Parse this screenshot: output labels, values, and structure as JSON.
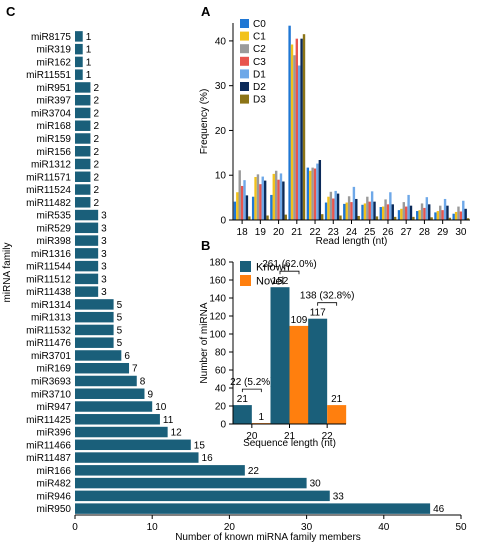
{
  "panels": {
    "c": "C",
    "a": "A",
    "b": "B"
  },
  "chart_data": [
    {
      "panel": "C",
      "type": "bar",
      "orientation": "horizontal",
      "categories": [
        "miR8175",
        "miR319",
        "miR162",
        "miR11551",
        "miR951",
        "miR397",
        "miR3704",
        "miR168",
        "miR159",
        "miR156",
        "miR1312",
        "miR11571",
        "miR11524",
        "miR11482",
        "miR535",
        "miR529",
        "miR398",
        "miR1316",
        "miR11544",
        "miR11512",
        "miR11438",
        "miR1314",
        "miR1313",
        "miR11532",
        "miR11476",
        "miR3701",
        "miR169",
        "miR3693",
        "miR3710",
        "miR947",
        "miR11425",
        "miR396",
        "miR11466",
        "miR11487",
        "miR166",
        "miR482",
        "miR946",
        "miR950"
      ],
      "values": [
        1,
        1,
        1,
        1,
        2,
        2,
        2,
        2,
        2,
        2,
        2,
        2,
        2,
        2,
        3,
        3,
        3,
        3,
        3,
        3,
        3,
        5,
        5,
        5,
        5,
        6,
        7,
        8,
        9,
        10,
        11,
        12,
        15,
        16,
        22,
        30,
        33,
        46
      ],
      "xlabel": "Number of known miRNA family members",
      "ylabel": "miRNA family",
      "xlim": [
        0,
        50
      ],
      "xticks": [
        0,
        10,
        20,
        30,
        40,
        50
      ],
      "color": "#1a5f7a",
      "grid": false
    },
    {
      "panel": "A",
      "type": "bar",
      "categories": [
        "18",
        "19",
        "20",
        "21",
        "22",
        "23",
        "24",
        "25",
        "26",
        "27",
        "28",
        "29",
        "30"
      ],
      "series": [
        {
          "name": "C0",
          "color": "#1f77d4",
          "values": [
            4.1,
            5.2,
            5.6,
            43.4,
            11.7,
            3.9,
            3.6,
            3.4,
            2.9,
            2.2,
            2.0,
            1.7,
            1.4
          ]
        },
        {
          "name": "C1",
          "color": "#f2c21b",
          "values": [
            6.2,
            9.6,
            10.3,
            39.2,
            11.0,
            5.2,
            3.9,
            3.7,
            3.0,
            2.5,
            2.2,
            2.0,
            1.8
          ]
        },
        {
          "name": "C2",
          "color": "#9a9a9a",
          "values": [
            11.1,
            10.2,
            11.0,
            36.8,
            11.7,
            6.3,
            5.3,
            5.2,
            4.6,
            4.0,
            3.7,
            3.2,
            3.0
          ]
        },
        {
          "name": "C3",
          "color": "#e8554e",
          "values": [
            7.6,
            8.0,
            9.0,
            40.5,
            11.5,
            4.8,
            4.0,
            4.1,
            3.5,
            3.0,
            2.7,
            2.2,
            1.9
          ]
        },
        {
          "name": "D1",
          "color": "#6ea8e8",
          "values": [
            8.9,
            9.7,
            10.4,
            34.5,
            12.6,
            6.5,
            7.4,
            6.4,
            6.2,
            5.6,
            5.1,
            4.7,
            4.3
          ]
        },
        {
          "name": "D2",
          "color": "#0b2a59",
          "values": [
            5.5,
            8.8,
            8.6,
            40.5,
            13.4,
            5.9,
            4.7,
            4.1,
            3.5,
            3.2,
            3.5,
            3.2,
            2.5
          ]
        },
        {
          "name": "D3",
          "color": "#8c7416",
          "values": [
            0.8,
            1.0,
            1.2,
            41.5,
            1.3,
            1.0,
            0.9,
            0.8,
            0.7,
            0.7,
            0.6,
            0.5,
            0.4
          ]
        }
      ],
      "xlabel": "Read length (nt)",
      "ylabel": "Frequency (%)",
      "ylim": [
        0,
        44
      ],
      "yticks": [
        0,
        10,
        20,
        30,
        40
      ],
      "legend": "top-left"
    },
    {
      "panel": "B",
      "type": "bar",
      "categories": [
        "20",
        "21",
        "22"
      ],
      "series": [
        {
          "name": "Known",
          "color": "#1a5f7a",
          "values": [
            21,
            152,
            117
          ]
        },
        {
          "name": "Novel",
          "color": "#ff7f0e",
          "values": [
            1,
            109,
            21
          ]
        }
      ],
      "totals": [
        "22 (5.2%)",
        "261 (62.0%)",
        "138 (32.8%)"
      ],
      "xlabel": "Sequence length (nt)",
      "ylabel": "Number of miRNA",
      "ylim": [
        0,
        180
      ],
      "yticks": [
        0,
        20,
        40,
        60,
        80,
        100,
        120,
        140,
        160,
        180
      ],
      "legend": "top-left"
    }
  ]
}
